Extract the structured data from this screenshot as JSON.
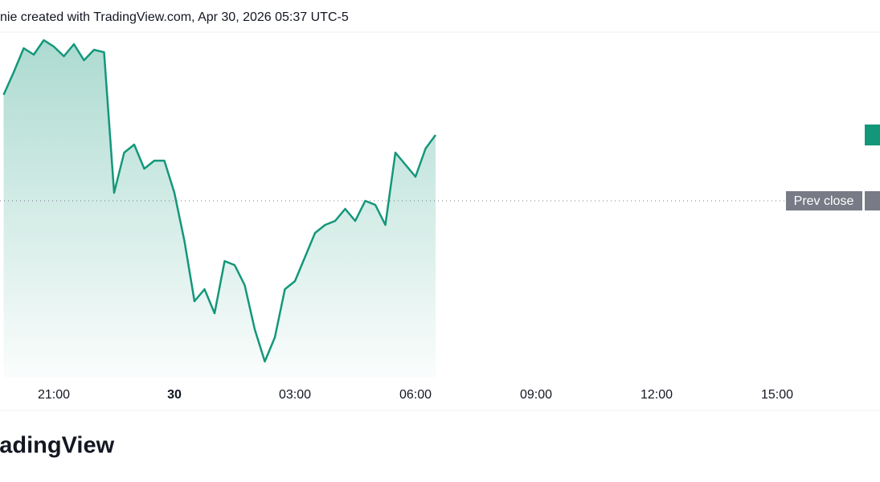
{
  "header": "nie created with TradingView.com, Apr 30, 2026 05:37 UTC-5",
  "logo": "radingView",
  "chart_data": {
    "type": "area",
    "color": "#13977a",
    "categories": [
      null,
      null,
      null,
      null,
      null,
      "21:00",
      null,
      null,
      null,
      null,
      null,
      null,
      null,
      null,
      null,
      null,
      null,
      "30",
      null,
      null,
      null,
      null,
      null,
      null,
      null,
      null,
      null,
      null,
      null,
      "03:00",
      null,
      null,
      null,
      null,
      null,
      null,
      null,
      null,
      null,
      null,
      null,
      "06:00",
      null,
      null,
      null,
      null,
      null,
      null,
      null,
      null,
      null,
      null,
      null,
      "09:00",
      null,
      null,
      null,
      null,
      null,
      null,
      null,
      null,
      null,
      null,
      null,
      "12:00",
      null,
      null,
      null,
      null,
      null,
      null,
      null,
      null,
      null,
      null,
      null,
      "15:00",
      null,
      null,
      null,
      null,
      null,
      null,
      null,
      null,
      null,
      null
    ],
    "values": [
      392,
      420,
      450,
      442,
      460,
      452,
      440,
      455,
      435,
      448,
      445,
      270,
      320,
      330,
      300,
      310,
      310,
      270,
      210,
      135,
      150,
      120,
      185,
      180,
      155,
      100,
      60,
      90,
      150,
      160,
      190,
      220,
      230,
      235,
      250,
      235,
      260,
      255,
      230,
      320,
      305,
      290,
      325,
      342,
      null,
      null,
      null,
      null,
      null,
      null,
      null,
      null,
      null,
      null,
      null,
      null,
      null,
      null,
      null,
      null,
      null,
      null,
      null,
      null,
      null,
      null,
      null,
      null,
      null,
      null,
      null,
      null,
      null,
      null,
      null,
      null,
      null,
      null,
      null,
      null,
      null,
      null,
      null,
      null,
      null,
      null,
      null,
      null
    ],
    "ylim": [
      0,
      460
    ],
    "prev_close": 260,
    "prev_close_label": "Prev close"
  }
}
